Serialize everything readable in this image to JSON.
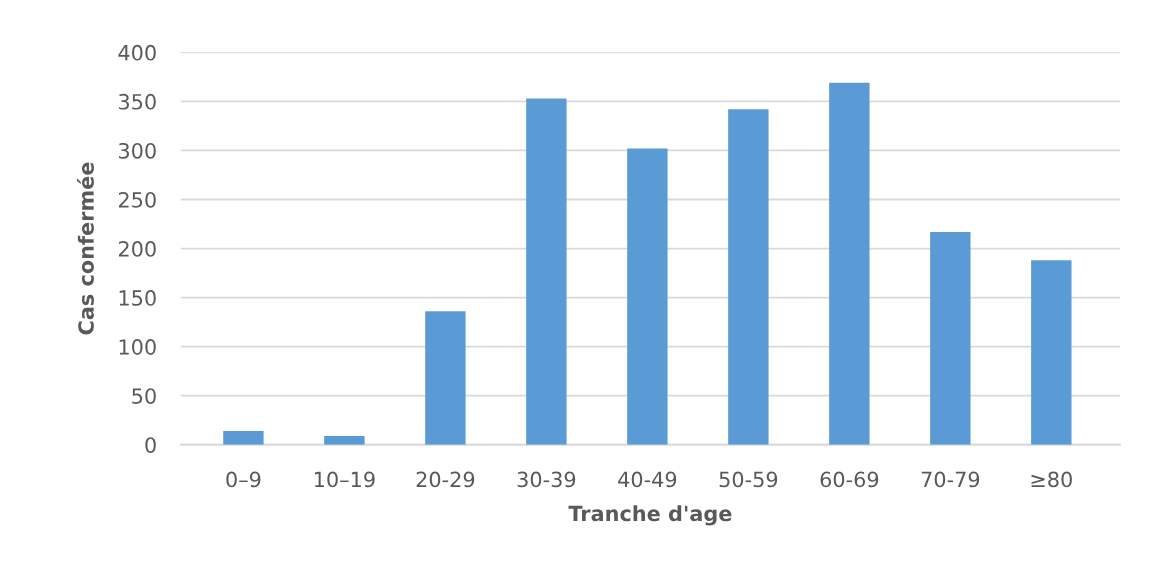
{
  "chart_data": {
    "type": "bar",
    "xlabel": "Tranche d'age",
    "ylabel": "Cas confermée",
    "categories": [
      "0–9",
      "10–19",
      "20-29",
      "30-39",
      "40-49",
      "50-59",
      "60-69",
      "70-79",
      "≥80"
    ],
    "values": [
      14,
      9,
      136,
      353,
      302,
      342,
      369,
      217,
      188
    ],
    "color": "#5b9bd5",
    "ylim": [
      0,
      400
    ],
    "yticks": [
      0,
      50,
      100,
      150,
      200,
      250,
      300,
      350,
      400
    ],
    "grid": "y"
  }
}
